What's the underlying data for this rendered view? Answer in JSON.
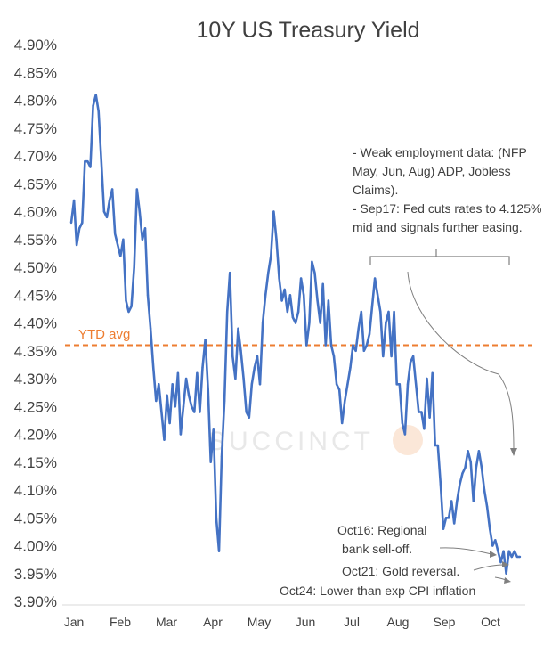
{
  "chart_data": {
    "type": "line",
    "title": "10Y US Treasury Yield",
    "xlabel": "",
    "ylabel": "",
    "ylim": [
      3.9,
      4.9
    ],
    "yticks": [
      "4.90%",
      "4.85%",
      "4.80%",
      "4.75%",
      "4.70%",
      "4.65%",
      "4.60%",
      "4.55%",
      "4.50%",
      "4.45%",
      "4.40%",
      "4.35%",
      "4.30%",
      "4.25%",
      "4.20%",
      "4.15%",
      "4.10%",
      "4.05%",
      "4.00%",
      "3.95%",
      "3.90%"
    ],
    "xticks": [
      "Jan",
      "Feb",
      "Mar",
      "Apr",
      "May",
      "Jun",
      "Jul",
      "Aug",
      "Sep",
      "Oct"
    ],
    "colors": {
      "series": "#4472C4",
      "avg": "#ED7D31",
      "text": "#404040",
      "axis": "#d9d9d9",
      "arrow": "#7f7f7f"
    },
    "reference_line": {
      "label": "YTD avg",
      "value": 4.36
    },
    "series": [
      {
        "name": "10Y US Treasury Yield",
        "values": [
          4.58,
          4.62,
          4.54,
          4.57,
          4.58,
          4.69,
          4.69,
          4.68,
          4.79,
          4.81,
          4.78,
          4.69,
          4.6,
          4.59,
          4.62,
          4.64,
          4.56,
          4.54,
          4.52,
          4.55,
          4.44,
          4.42,
          4.43,
          4.5,
          4.64,
          4.6,
          4.55,
          4.57,
          4.45,
          4.39,
          4.32,
          4.26,
          4.29,
          4.24,
          4.19,
          4.27,
          4.22,
          4.29,
          4.25,
          4.31,
          4.2,
          4.25,
          4.3,
          4.27,
          4.25,
          4.24,
          4.31,
          4.24,
          4.32,
          4.37,
          4.28,
          4.15,
          4.21,
          4.05,
          3.99,
          4.16,
          4.26,
          4.42,
          4.49,
          4.34,
          4.3,
          4.39,
          4.35,
          4.3,
          4.24,
          4.23,
          4.29,
          4.32,
          4.34,
          4.29,
          4.4,
          4.45,
          4.49,
          4.52,
          4.6,
          4.55,
          4.48,
          4.44,
          4.46,
          4.42,
          4.45,
          4.41,
          4.4,
          4.42,
          4.48,
          4.45,
          4.36,
          4.4,
          4.51,
          4.49,
          4.44,
          4.4,
          4.47,
          4.36,
          4.44,
          4.36,
          4.34,
          4.29,
          4.28,
          4.22,
          4.26,
          4.29,
          4.32,
          4.36,
          4.35,
          4.39,
          4.42,
          4.35,
          4.36,
          4.38,
          4.43,
          4.48,
          4.45,
          4.42,
          4.34,
          4.4,
          4.42,
          4.34,
          4.42,
          4.29,
          4.29,
          4.22,
          4.2,
          4.29,
          4.33,
          4.34,
          4.29,
          4.24,
          4.24,
          4.21,
          4.3,
          4.23,
          4.31,
          4.18,
          4.18,
          4.11,
          4.03,
          4.05,
          4.05,
          4.08,
          4.04,
          4.08,
          4.11,
          4.13,
          4.14,
          4.17,
          4.15,
          4.08,
          4.14,
          4.17,
          4.14,
          4.1,
          4.07,
          4.03,
          4.0,
          4.01,
          3.99,
          3.97,
          3.99,
          3.95,
          3.99,
          3.98,
          3.99,
          3.98,
          3.98
        ]
      }
    ],
    "annotations": [
      {
        "lines": [
          "- Weak employment data: (NFP",
          "May, Jun, Aug) ADP, Jobless",
          "Claims).",
          "- Sep17: Fed cuts rates to 4.125%",
          "mid and signals further easing."
        ]
      },
      {
        "lines": [
          "Oct16: Regional",
          "bank sell-off."
        ]
      },
      {
        "lines": [
          "Oct21: Gold reversal."
        ]
      },
      {
        "lines": [
          "Oct24: Lower than exp CPI inflation"
        ]
      }
    ],
    "watermark": "SUCCINCT"
  }
}
